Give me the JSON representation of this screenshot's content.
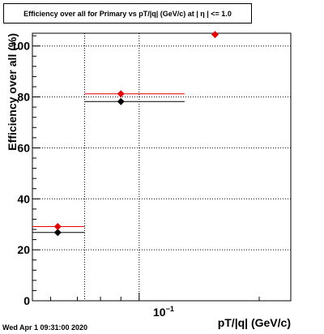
{
  "chart_data": {
    "type": "scatter",
    "title": "Efficiency over all for Primary vs pT/|q| (GeV/c) at | η | <= 1.0",
    "xlabel": "pT/|q| (GeV/c)",
    "ylabel": "Efficiency over all (%)",
    "x_scale": "log",
    "xlim": [
      0.054,
      0.24
    ],
    "ylim": [
      0,
      105
    ],
    "x_tick_label": "10",
    "x_tick_exponent": "−1",
    "y_ticks": [
      0,
      20,
      40,
      60,
      80,
      100
    ],
    "grid": true,
    "series": [
      {
        "color": "#000000",
        "marker": "diamond",
        "points": [
          {
            "x": 0.0625,
            "y": 26.8,
            "xerr": [
              0.054,
              0.073
            ]
          },
          {
            "x": 0.09,
            "y": 78.2,
            "xerr": [
              0.073,
              0.13
            ]
          }
        ]
      },
      {
        "color": "#e60000",
        "marker": "diamond",
        "points": [
          {
            "x": 0.0625,
            "y": 29.1,
            "xerr": [
              0.054,
              0.073
            ]
          },
          {
            "x": 0.09,
            "y": 81.2,
            "xerr": [
              0.073,
              0.13
            ]
          },
          {
            "x": 0.155,
            "y": 104.5,
            "xerr": null
          }
        ]
      }
    ]
  },
  "footer": "Wed Apr  1 09:31:00 2020"
}
